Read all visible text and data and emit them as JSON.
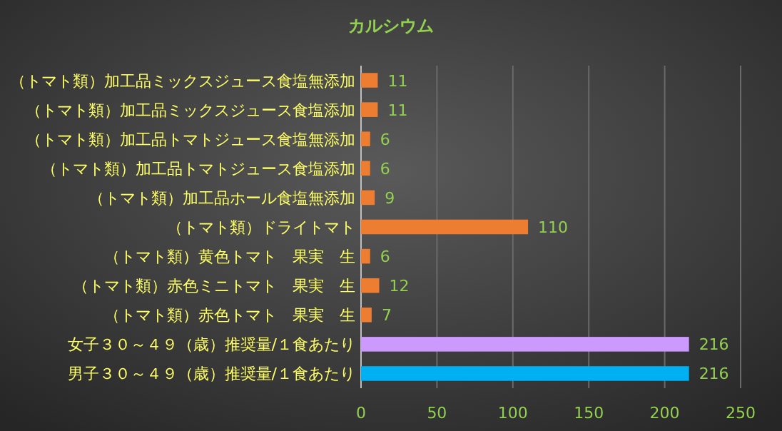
{
  "chart_data": {
    "type": "bar",
    "orientation": "horizontal",
    "title": "カルシウム",
    "categories": [
      "（トマト類）加工品ミックスジュース食塩無添加",
      "（トマト類）加工品ミックスジュース食塩添加",
      "（トマト類）加工品トマトジュース食塩無添加",
      "（トマト類）加工品トマトジュース食塩添加",
      "（トマト類）加工品ホール食塩無添加",
      "（トマト類）ドライトマト",
      "（トマト類）黄色トマト　果実　生",
      "（トマト類）赤色ミニトマト　果実　生",
      "（トマト類）赤色トマト　果実　生",
      "女子３０～４９（歳）推奨量/１食あたり",
      "男子３０～４９（歳）推奨量/１食あたり"
    ],
    "values": [
      11,
      11,
      6,
      6,
      9,
      110,
      6,
      12,
      7,
      216,
      216
    ],
    "colors": [
      "#ed7d31",
      "#ed7d31",
      "#ed7d31",
      "#ed7d31",
      "#ed7d31",
      "#ed7d31",
      "#ed7d31",
      "#ed7d31",
      "#ed7d31",
      "#cc99ff",
      "#00b0f0"
    ],
    "xlim": [
      0,
      250
    ],
    "xticks": [
      0,
      50,
      100,
      150,
      200,
      250
    ],
    "grid": "x",
    "data_labels": true
  }
}
